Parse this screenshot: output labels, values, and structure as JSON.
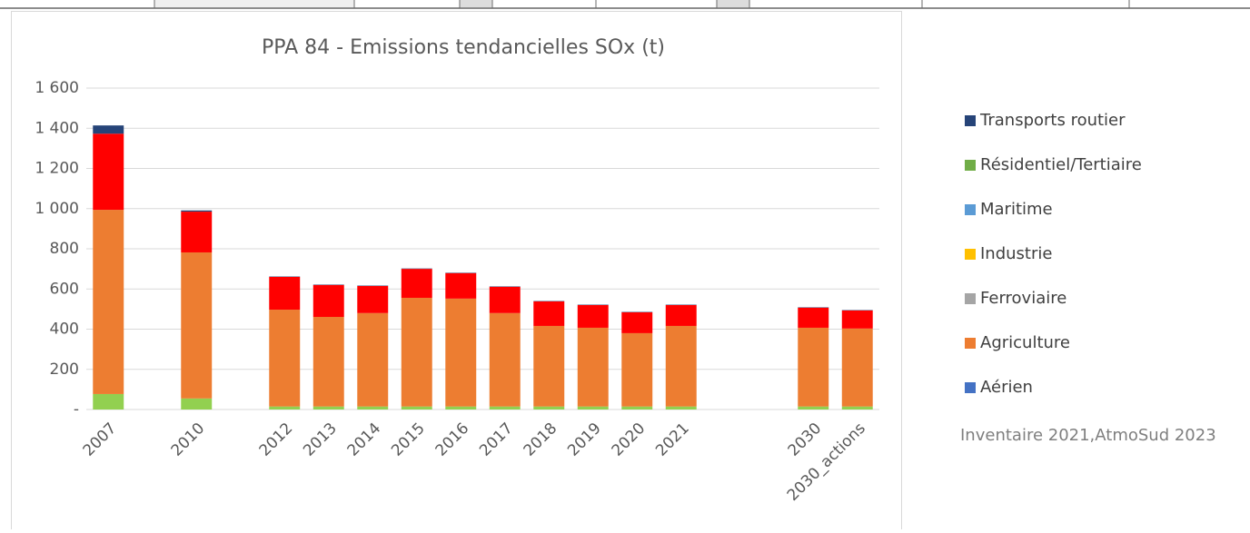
{
  "chart_data": {
    "type": "stacked_bar",
    "title": "PPA 84 - Emissions tendancielles SOx (t)",
    "annotation": "Inventaire 2021,AtmoSud 2023",
    "categories": [
      "2007",
      null,
      "2010",
      null,
      "2012",
      "2013",
      "2014",
      "2015",
      "2016",
      "2017",
      "2018",
      "2019",
      "2020",
      "2021",
      null,
      null,
      "2030",
      "2030_actions"
    ],
    "ylim": [
      0,
      1600
    ],
    "yticks": [
      {
        "value": 0,
        "label": "-"
      },
      200,
      400,
      600,
      800,
      {
        "value": 1000,
        "label": "1 000"
      },
      {
        "value": 1200,
        "label": "1 200"
      },
      {
        "value": 1400,
        "label": "1 400"
      },
      {
        "value": 1600,
        "label": "1 600"
      }
    ],
    "grid": true,
    "legend": "right",
    "series": [
      {
        "name": "Aérien",
        "color": "#4472c4",
        "bar_color": "#92d050",
        "values": [
          77,
          null,
          55,
          null,
          15,
          15,
          15,
          15,
          15,
          15,
          15,
          15,
          15,
          15,
          null,
          null,
          15,
          15
        ]
      },
      {
        "name": "Agriculture",
        "color": "#ed7d31",
        "bar_color": "#ed7d31",
        "values": [
          917,
          null,
          727,
          null,
          482,
          446,
          465,
          541,
          537,
          465,
          401,
          392,
          365,
          401,
          null,
          null,
          392,
          388
        ]
      },
      {
        "name": "Ferroviaire",
        "color": "#a5a5a5",
        "bar_color": "#a5a5a5",
        "values": [
          0,
          null,
          0,
          null,
          0,
          0,
          0,
          0,
          0,
          0,
          0,
          0,
          0,
          0,
          null,
          null,
          0,
          0
        ]
      },
      {
        "name": "Industrie",
        "color": "#ffc000",
        "bar_color": "#ff0000",
        "values": [
          379,
          null,
          203,
          null,
          163,
          159,
          135,
          144,
          127,
          131,
          122,
          113,
          104,
          104,
          null,
          null,
          100,
          90
        ]
      },
      {
        "name": "Maritime",
        "color": "#5b9bd5",
        "bar_color": "#5b9bd5",
        "values": [
          0,
          null,
          0,
          null,
          0,
          0,
          0,
          0,
          0,
          0,
          0,
          0,
          0,
          0,
          null,
          null,
          0,
          0
        ]
      },
      {
        "name": "Résidentiel/Tertiaire",
        "color": "#70ad47",
        "bar_color": "#70ad47",
        "values": [
          0,
          null,
          0,
          null,
          0,
          0,
          0,
          0,
          0,
          0,
          0,
          0,
          0,
          0,
          null,
          null,
          0,
          0
        ]
      },
      {
        "name": "Transports routier",
        "color": "#264478",
        "bar_color": "#264478",
        "values": [
          41,
          null,
          6,
          null,
          2,
          2,
          2,
          2,
          2,
          2,
          2,
          2,
          2,
          2,
          null,
          null,
          2,
          2
        ]
      }
    ]
  }
}
